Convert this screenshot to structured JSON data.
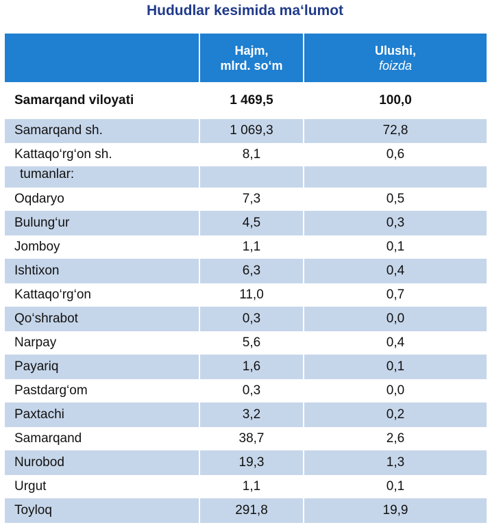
{
  "title": "Hududlar kesimida ma‘lumot",
  "header": {
    "col2_line1": "Hajm,",
    "col2_line2": "mlrd. so‘m",
    "col3_line1": "Ulushi,",
    "col3_line2": "foizda"
  },
  "total": {
    "name": "Samarqand viloyati",
    "volume": "1 469,5",
    "share": "100,0"
  },
  "rows": [
    {
      "name": "Samarqand sh.",
      "volume": "1 069,3",
      "share": "72,8"
    },
    {
      "name": "Kattaqo‘rg‘on sh.",
      "volume": "8,1",
      "share": "0,6"
    },
    {
      "name": "tumanlar:",
      "volume": "",
      "share": ""
    },
    {
      "name": "Oqdaryo",
      "volume": "7,3",
      "share": "0,5"
    },
    {
      "name": "Bulung‘ur",
      "volume": "4,5",
      "share": "0,3"
    },
    {
      "name": "Jomboy",
      "volume": "1,1",
      "share": "0,1"
    },
    {
      "name": "Ishtixon",
      "volume": "6,3",
      "share": "0,4"
    },
    {
      "name": "Kattaqo‘rg‘on",
      "volume": "11,0",
      "share": "0,7"
    },
    {
      "name": "Qo‘shrabot",
      "volume": "0,3",
      "share": "0,0"
    },
    {
      "name": "Narpay",
      "volume": "5,6",
      "share": "0,4"
    },
    {
      "name": "Payariq",
      "volume": "1,6",
      "share": "0,1"
    },
    {
      "name": "Pastdarg‘om",
      "volume": "0,3",
      "share": "0,0"
    },
    {
      "name": "Paxtachi",
      "volume": "3,2",
      "share": "0,2"
    },
    {
      "name": "Samarqand",
      "volume": "38,7",
      "share": "2,6"
    },
    {
      "name": "Nurobod",
      "volume": "19,3",
      "share": "1,3"
    },
    {
      "name": "Urgut",
      "volume": "1,1",
      "share": "0,1"
    },
    {
      "name": "Toyloq",
      "volume": "291,8",
      "share": "19,9"
    }
  ],
  "colors": {
    "title": "#1f3a8a",
    "header_bg": "#1f7fd0",
    "row_shade": "#c6d6ea"
  }
}
